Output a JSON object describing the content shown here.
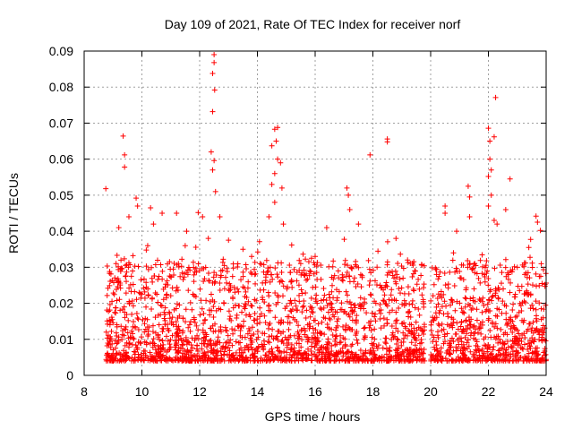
{
  "chart_data": {
    "type": "scatter",
    "title": "Day 109 of 2021, Rate Of TEC Index for receiver norf",
    "xlabel": "GPS time / hours",
    "ylabel": "ROTI / TECUs",
    "xlim": [
      8,
      24
    ],
    "ylim": [
      0,
      0.09
    ],
    "xticks": [
      8,
      10,
      12,
      14,
      16,
      18,
      20,
      22,
      24
    ],
    "xtick_labels": [
      "8",
      "10",
      "12",
      "14",
      "16",
      "18",
      "20",
      "22",
      "24"
    ],
    "yticks": [
      0,
      0.01,
      0.02,
      0.03,
      0.04,
      0.05,
      0.06,
      0.07,
      0.08,
      0.09
    ],
    "ytick_labels": [
      "0",
      "0.01",
      "0.02",
      "0.03",
      "0.04",
      "0.05",
      "0.06",
      "0.07",
      "0.08",
      "0.09"
    ],
    "grid": true,
    "marker": "+",
    "color": "#ff0000",
    "series": [
      {
        "name": "ROTI",
        "points": [
          [
            8.75,
            0.0518
          ],
          [
            9.35,
            0.0664
          ],
          [
            9.4,
            0.0612
          ],
          [
            9.4,
            0.0578
          ],
          [
            9.8,
            0.0492
          ],
          [
            9.85,
            0.047
          ],
          [
            9.2,
            0.041
          ],
          [
            9.55,
            0.044
          ],
          [
            10.3,
            0.0465
          ],
          [
            10.7,
            0.045
          ],
          [
            10.4,
            0.042
          ],
          [
            11.2,
            0.045
          ],
          [
            11.55,
            0.04
          ],
          [
            11.95,
            0.0452
          ],
          [
            12.1,
            0.044
          ],
          [
            12.5,
            0.089
          ],
          [
            12.5,
            0.0868
          ],
          [
            12.45,
            0.0838
          ],
          [
            12.52,
            0.0792
          ],
          [
            12.45,
            0.0732
          ],
          [
            12.4,
            0.062
          ],
          [
            12.5,
            0.0596
          ],
          [
            12.45,
            0.057
          ],
          [
            12.55,
            0.051
          ],
          [
            12.7,
            0.044
          ],
          [
            12.3,
            0.038
          ],
          [
            13.0,
            0.0375
          ],
          [
            13.5,
            0.035
          ],
          [
            14.6,
            0.0683
          ],
          [
            14.7,
            0.0688
          ],
          [
            14.65,
            0.065
          ],
          [
            14.5,
            0.0637
          ],
          [
            14.7,
            0.06
          ],
          [
            14.8,
            0.059
          ],
          [
            14.6,
            0.056
          ],
          [
            14.5,
            0.053
          ],
          [
            14.85,
            0.052
          ],
          [
            14.6,
            0.048
          ],
          [
            14.4,
            0.044
          ],
          [
            14.9,
            0.042
          ],
          [
            16.4,
            0.041
          ],
          [
            17.1,
            0.052
          ],
          [
            17.15,
            0.05
          ],
          [
            17.2,
            0.046
          ],
          [
            17.5,
            0.042
          ],
          [
            17.9,
            0.0612
          ],
          [
            18.5,
            0.0656
          ],
          [
            18.5,
            0.0648
          ],
          [
            18.8,
            0.038
          ],
          [
            20.5,
            0.047
          ],
          [
            20.5,
            0.045
          ],
          [
            20.9,
            0.04
          ],
          [
            21.3,
            0.0525
          ],
          [
            21.35,
            0.0495
          ],
          [
            21.35,
            0.044
          ],
          [
            22.0,
            0.0686
          ],
          [
            22.05,
            0.065
          ],
          [
            22.2,
            0.0662
          ],
          [
            22.25,
            0.0771
          ],
          [
            22.05,
            0.06
          ],
          [
            22.1,
            0.057
          ],
          [
            22.0,
            0.0552
          ],
          [
            22.1,
            0.05
          ],
          [
            22.0,
            0.047
          ],
          [
            22.2,
            0.043
          ],
          [
            22.3,
            0.042
          ],
          [
            22.75,
            0.0545
          ],
          [
            22.6,
            0.046
          ],
          [
            23.65,
            0.0442
          ],
          [
            23.7,
            0.0425
          ],
          [
            23.8,
            0.0402
          ],
          [
            23.4,
            0.0355
          ],
          [
            23.0,
            0.03
          ],
          [
            19.2,
            0.032
          ],
          [
            15.5,
            0.031
          ],
          [
            16.0,
            0.033
          ],
          [
            16.8,
            0.029
          ],
          [
            13.8,
            0.033
          ],
          [
            11.5,
            0.036
          ],
          [
            10.2,
            0.036
          ]
        ]
      }
    ]
  }
}
